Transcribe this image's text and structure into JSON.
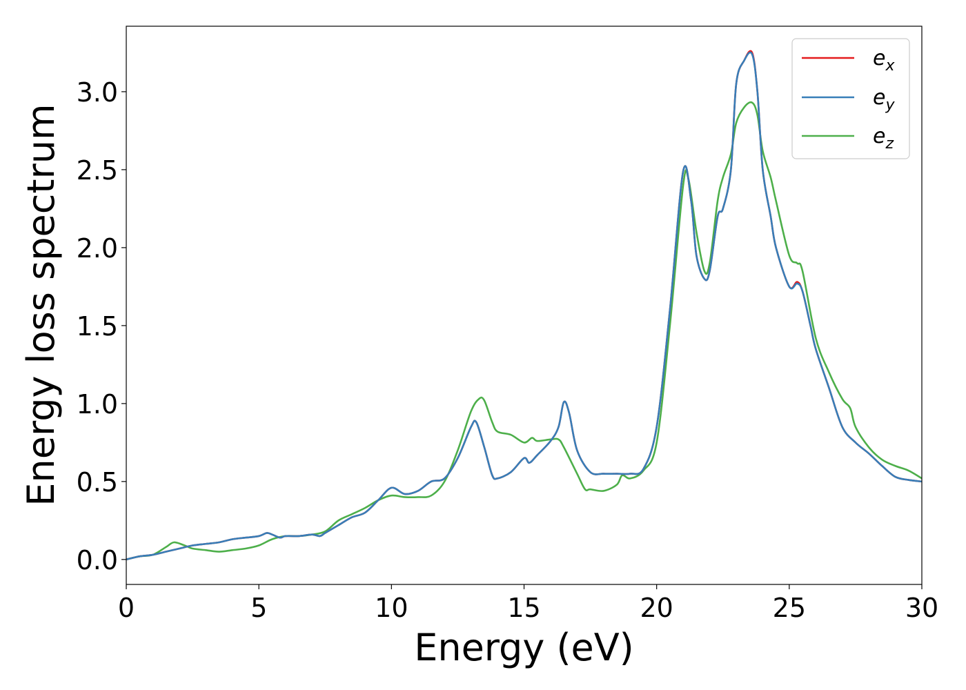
{
  "chart_data": {
    "type": "line",
    "xlabel": "Energy (eV)",
    "ylabel": "Energy loss spectrum",
    "xlim": [
      0,
      30
    ],
    "ylim": [
      -0.16,
      3.42
    ],
    "xticks": [
      "0",
      "5",
      "10",
      "15",
      "20",
      "25",
      "30"
    ],
    "xtick_values": [
      0,
      5,
      10,
      15,
      20,
      25,
      30
    ],
    "yticks": [
      "0.0",
      "0.5",
      "1.0",
      "1.5",
      "2.0",
      "2.5",
      "3.0"
    ],
    "ytick_values": [
      0,
      0.5,
      1.0,
      1.5,
      2.0,
      2.5,
      3.0
    ],
    "grid": false,
    "legend_position": "top-right",
    "series": [
      {
        "name": "e",
        "subscript": "x",
        "color": "#e41a1c",
        "x": [
          0,
          0.5,
          1,
          1.5,
          2,
          2.5,
          3,
          3.5,
          4,
          4.5,
          5,
          5.3,
          5.5,
          5.8,
          6,
          6.5,
          7,
          7.3,
          7.5,
          8,
          8.5,
          9,
          9.5,
          10,
          10.5,
          11,
          11.5,
          12,
          12.5,
          13,
          13.2,
          13.5,
          13.8,
          14,
          14.5,
          15,
          15.2,
          15.5,
          16,
          16.3,
          16.5,
          16.7,
          17,
          17.5,
          18,
          18.5,
          19,
          19.5,
          20,
          20.5,
          21,
          21.3,
          21.5,
          21.8,
          22,
          22.3,
          22.5,
          22.8,
          23,
          23.3,
          23.6,
          23.8,
          24,
          24.3,
          24.5,
          25,
          25.3,
          25.5,
          25.8,
          26,
          26.5,
          27,
          27.5,
          28,
          28.5,
          29,
          29.5,
          30
        ],
        "y": [
          0,
          0.02,
          0.03,
          0.05,
          0.07,
          0.09,
          0.1,
          0.11,
          0.13,
          0.14,
          0.15,
          0.17,
          0.16,
          0.14,
          0.15,
          0.15,
          0.16,
          0.15,
          0.17,
          0.22,
          0.27,
          0.3,
          0.38,
          0.46,
          0.42,
          0.44,
          0.5,
          0.52,
          0.65,
          0.85,
          0.88,
          0.72,
          0.54,
          0.52,
          0.56,
          0.65,
          0.62,
          0.67,
          0.76,
          0.85,
          1.01,
          0.94,
          0.7,
          0.56,
          0.55,
          0.55,
          0.55,
          0.58,
          0.85,
          1.6,
          2.49,
          2.3,
          1.95,
          1.8,
          1.85,
          2.2,
          2.25,
          2.5,
          3.05,
          3.2,
          3.25,
          3.0,
          2.5,
          2.2,
          2.0,
          1.75,
          1.78,
          1.72,
          1.5,
          1.35,
          1.1,
          0.85,
          0.75,
          0.68,
          0.6,
          0.53,
          0.51,
          0.5
        ]
      },
      {
        "name": "e",
        "subscript": "y",
        "color": "#377eb8",
        "x": [
          0,
          0.5,
          1,
          1.5,
          2,
          2.5,
          3,
          3.5,
          4,
          4.5,
          5,
          5.3,
          5.5,
          5.8,
          6,
          6.5,
          7,
          7.3,
          7.5,
          8,
          8.5,
          9,
          9.5,
          10,
          10.5,
          11,
          11.5,
          12,
          12.5,
          13,
          13.2,
          13.5,
          13.8,
          14,
          14.5,
          15,
          15.2,
          15.5,
          16,
          16.3,
          16.5,
          16.7,
          17,
          17.5,
          18,
          18.5,
          19,
          19.5,
          20,
          20.5,
          21,
          21.3,
          21.5,
          21.8,
          22,
          22.3,
          22.5,
          22.8,
          23,
          23.3,
          23.6,
          23.8,
          24,
          24.3,
          24.5,
          25,
          25.3,
          25.5,
          25.8,
          26,
          26.5,
          27,
          27.5,
          28,
          28.5,
          29,
          29.5,
          30
        ],
        "y": [
          0,
          0.02,
          0.03,
          0.05,
          0.07,
          0.09,
          0.1,
          0.11,
          0.13,
          0.14,
          0.15,
          0.17,
          0.16,
          0.14,
          0.15,
          0.15,
          0.16,
          0.15,
          0.17,
          0.22,
          0.27,
          0.3,
          0.38,
          0.46,
          0.42,
          0.44,
          0.5,
          0.52,
          0.65,
          0.85,
          0.88,
          0.72,
          0.54,
          0.52,
          0.56,
          0.65,
          0.62,
          0.67,
          0.76,
          0.85,
          1.01,
          0.94,
          0.7,
          0.56,
          0.55,
          0.55,
          0.55,
          0.58,
          0.85,
          1.6,
          2.49,
          2.3,
          1.95,
          1.8,
          1.85,
          2.2,
          2.25,
          2.5,
          3.05,
          3.2,
          3.24,
          3.0,
          2.5,
          2.2,
          2.0,
          1.75,
          1.77,
          1.72,
          1.5,
          1.35,
          1.1,
          0.85,
          0.75,
          0.68,
          0.6,
          0.53,
          0.51,
          0.5
        ]
      },
      {
        "name": "e",
        "subscript": "z",
        "color": "#4daf4a",
        "x": [
          0,
          0.5,
          1,
          1.5,
          1.8,
          2.2,
          2.5,
          3,
          3.5,
          4,
          4.5,
          5,
          5.5,
          6,
          6.5,
          7,
          7.5,
          8,
          8.5,
          9,
          9.5,
          10,
          10.5,
          11,
          11.5,
          12,
          12.5,
          13,
          13.3,
          13.5,
          13.8,
          14,
          14.5,
          15,
          15.3,
          15.5,
          16,
          16.3,
          16.5,
          17,
          17.3,
          17.5,
          18,
          18.5,
          18.7,
          19,
          19.5,
          20,
          20.5,
          21,
          21.2,
          21.5,
          21.8,
          22,
          22.3,
          22.5,
          22.8,
          23,
          23.3,
          23.6,
          23.8,
          24,
          24.3,
          24.5,
          25,
          25.3,
          25.5,
          26,
          26.5,
          27,
          27.3,
          27.5,
          28,
          28.5,
          29,
          29.5,
          30
        ],
        "y": [
          0,
          0.02,
          0.03,
          0.08,
          0.11,
          0.09,
          0.07,
          0.06,
          0.05,
          0.06,
          0.07,
          0.09,
          0.13,
          0.15,
          0.15,
          0.16,
          0.18,
          0.25,
          0.29,
          0.33,
          0.38,
          0.41,
          0.4,
          0.4,
          0.41,
          0.5,
          0.7,
          0.95,
          1.03,
          1.02,
          0.88,
          0.82,
          0.8,
          0.75,
          0.78,
          0.76,
          0.77,
          0.77,
          0.72,
          0.55,
          0.45,
          0.45,
          0.44,
          0.48,
          0.54,
          0.52,
          0.57,
          0.75,
          1.5,
          2.4,
          2.44,
          2.1,
          1.85,
          1.9,
          2.3,
          2.45,
          2.6,
          2.8,
          2.9,
          2.93,
          2.85,
          2.62,
          2.45,
          2.3,
          1.95,
          1.9,
          1.85,
          1.42,
          1.2,
          1.03,
          0.97,
          0.85,
          0.72,
          0.64,
          0.6,
          0.57,
          0.52
        ]
      }
    ]
  }
}
